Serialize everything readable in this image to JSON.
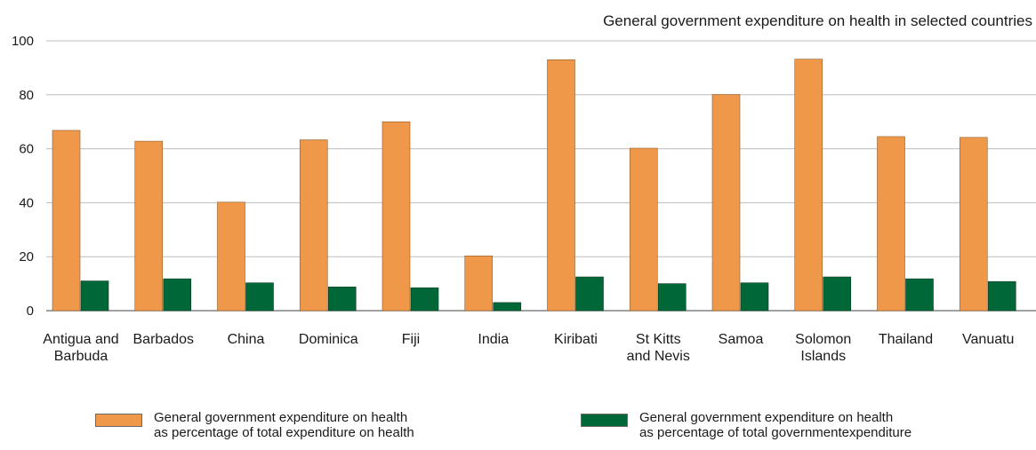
{
  "chart_data": {
    "type": "bar",
    "title": "General government expenditure on health in selected countries",
    "categories": [
      [
        "Antigua and",
        "Barbuda"
      ],
      [
        "Barbados"
      ],
      [
        "China"
      ],
      [
        "Dominica"
      ],
      [
        "Fiji"
      ],
      [
        "India"
      ],
      [
        "Kiribati"
      ],
      [
        "St Kitts",
        "and Nevis"
      ],
      [
        "Samoa"
      ],
      [
        "Solomon",
        "Islands"
      ],
      [
        "Thailand"
      ],
      [
        "Vanuatu"
      ]
    ],
    "series": [
      {
        "name": [
          "General government expenditure on health",
          "as percentage of total expenditure on health"
        ],
        "color": "#f0984a",
        "values": [
          66.8,
          62.8,
          40.2,
          63.3,
          70.0,
          20.3,
          93.0,
          60.2,
          80.1,
          93.2,
          64.5,
          64.2
        ]
      },
      {
        "name": [
          "General government expenditure on health",
          "as percentage of total governmentexpenditure"
        ],
        "color": "#006838",
        "values": [
          11.0,
          11.8,
          10.3,
          8.8,
          8.5,
          3.0,
          12.5,
          10.0,
          10.3,
          12.5,
          11.8,
          10.8
        ]
      }
    ],
    "ylim": [
      0,
      100
    ],
    "yticks": [
      0,
      20,
      40,
      60,
      80,
      100
    ],
    "grid": true,
    "legend": "bottom"
  }
}
